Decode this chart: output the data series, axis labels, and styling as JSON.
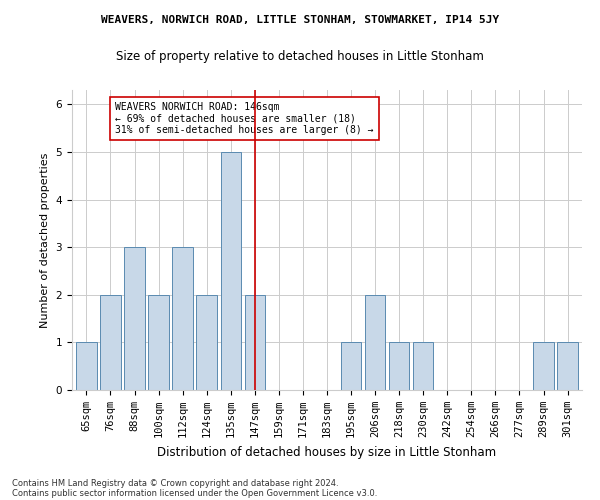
{
  "title": "WEAVERS, NORWICH ROAD, LITTLE STONHAM, STOWMARKET, IP14 5JY",
  "subtitle": "Size of property relative to detached houses in Little Stonham",
  "xlabel": "Distribution of detached houses by size in Little Stonham",
  "ylabel": "Number of detached properties",
  "categories": [
    "65sqm",
    "76sqm",
    "88sqm",
    "100sqm",
    "112sqm",
    "124sqm",
    "135sqm",
    "147sqm",
    "159sqm",
    "171sqm",
    "183sqm",
    "195sqm",
    "206sqm",
    "218sqm",
    "230sqm",
    "242sqm",
    "254sqm",
    "266sqm",
    "277sqm",
    "289sqm",
    "301sqm"
  ],
  "values": [
    1,
    2,
    3,
    2,
    3,
    2,
    5,
    2,
    0,
    0,
    0,
    1,
    2,
    1,
    1,
    0,
    0,
    0,
    0,
    1,
    1
  ],
  "bar_color": "#c8d8e8",
  "bar_edge_color": "#5a8ab0",
  "reference_line_index": 7,
  "reference_line_color": "#cc0000",
  "annotation_line1": "WEAVERS NORWICH ROAD: 146sqm",
  "annotation_line2": "← 69% of detached houses are smaller (18)",
  "annotation_line3": "31% of semi-detached houses are larger (8) →",
  "annotation_box_color": "#ffffff",
  "annotation_box_edge_color": "#cc0000",
  "ylim": [
    0,
    6.3
  ],
  "yticks": [
    0,
    1,
    2,
    3,
    4,
    5,
    6
  ],
  "footnote1": "Contains HM Land Registry data © Crown copyright and database right 2024.",
  "footnote2": "Contains public sector information licensed under the Open Government Licence v3.0.",
  "background_color": "#ffffff",
  "grid_color": "#cccccc",
  "title_fontsize": 8.0,
  "subtitle_fontsize": 8.5,
  "xlabel_fontsize": 8.5,
  "ylabel_fontsize": 8.0,
  "tick_fontsize": 7.5,
  "annotation_fontsize": 7.0,
  "footnote_fontsize": 6.0
}
